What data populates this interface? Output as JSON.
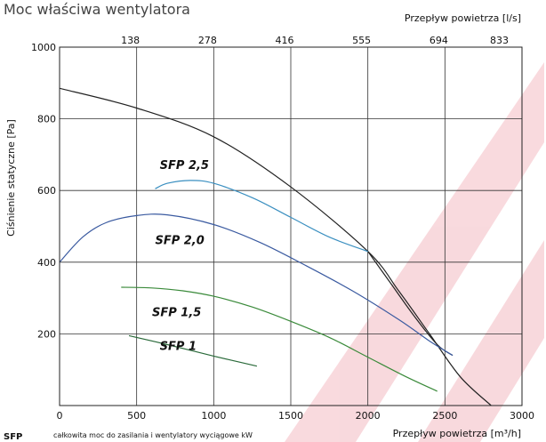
{
  "chart_data": {
    "type": "line",
    "title": "Moc właściwa wentylatora",
    "xlabel": "Przepływ powietrza [m³/h]",
    "x2label": "Przepływ powietrza [l/s]",
    "ylabel": "Ciśnienie statyczne [Pa]",
    "xlim": [
      0,
      3000
    ],
    "ylim": [
      0,
      1000
    ],
    "x_ticks": [
      "0",
      "500",
      "1000",
      "1500",
      "2000",
      "2500",
      "3000"
    ],
    "y_ticks": [
      "200",
      "400",
      "600",
      "800",
      "1000"
    ],
    "x2_ticks": [
      "138",
      "278",
      "416",
      "555",
      "694",
      "833"
    ],
    "grid": true,
    "footnote": {
      "label": "SFP",
      "text": "całkowita moc do zasilania i wentylatory wyciągowe kW"
    },
    "series": [
      {
        "name": "",
        "color": "#222222",
        "x": [
          0,
          500,
          1000,
          1500,
          2000,
          2200,
          2400,
          2600,
          2800
        ],
        "y": [
          885,
          830,
          750,
          610,
          430,
          320,
          200,
          80,
          0
        ]
      },
      {
        "name": "",
        "color": "#222222",
        "x": [
          2000,
          2150,
          2300,
          2450,
          2550
        ],
        "y": [
          430,
          340,
          250,
          170,
          140
        ]
      },
      {
        "name": "SFP 2,5",
        "color": "#3a8fc0",
        "x": [
          620,
          700,
          850,
          1000,
          1250,
          1500,
          1750,
          2000
        ],
        "y": [
          605,
          620,
          628,
          620,
          580,
          525,
          470,
          430
        ]
      },
      {
        "name": "SFP 2,0",
        "color": "#3a5aa0",
        "x": [
          0,
          150,
          300,
          500,
          700,
          1000,
          1300,
          1600,
          1900,
          2200,
          2400,
          2550
        ],
        "y": [
          400,
          470,
          510,
          530,
          532,
          505,
          455,
          390,
          320,
          240,
          180,
          140
        ]
      },
      {
        "name": "SFP 1,5",
        "color": "#3a8a3a",
        "x": [
          400,
          600,
          800,
          1000,
          1250,
          1500,
          1750,
          2000,
          2250,
          2450
        ],
        "y": [
          330,
          328,
          320,
          305,
          275,
          235,
          190,
          135,
          80,
          40
        ]
      },
      {
        "name": "SFP 1",
        "color": "#2a6a3a",
        "x": [
          450,
          700,
          1000,
          1280
        ],
        "y": [
          195,
          170,
          138,
          110
        ]
      }
    ],
    "label_anchors": [
      {
        "name": "SFP 2,5",
        "x": 650,
        "y": 660
      },
      {
        "name": "SFP 2,0",
        "x": 620,
        "y": 450
      },
      {
        "name": "SFP 1,5",
        "x": 600,
        "y": 250
      },
      {
        "name": "SFP 1",
        "x": 650,
        "y": 155
      }
    ]
  }
}
